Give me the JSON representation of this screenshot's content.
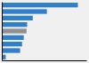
{
  "chart_data": {
    "type": "bar",
    "orientation": "horizontal",
    "categories": [
      null,
      null,
      null,
      null,
      null,
      null,
      null,
      null,
      null
    ],
    "values": [
      270000,
      160000,
      110000,
      90000,
      88000,
      78000,
      72000,
      65000,
      14000
    ],
    "colors": [
      "#2f80c8",
      "#2f80c8",
      "#2f80c8",
      "#2f80c8",
      "#8f9090",
      "#2f80c8",
      "#2f80c8",
      "#2f80c8",
      "#2f80c8"
    ],
    "xlim": [
      0,
      300000
    ],
    "tick_labels": false
  }
}
